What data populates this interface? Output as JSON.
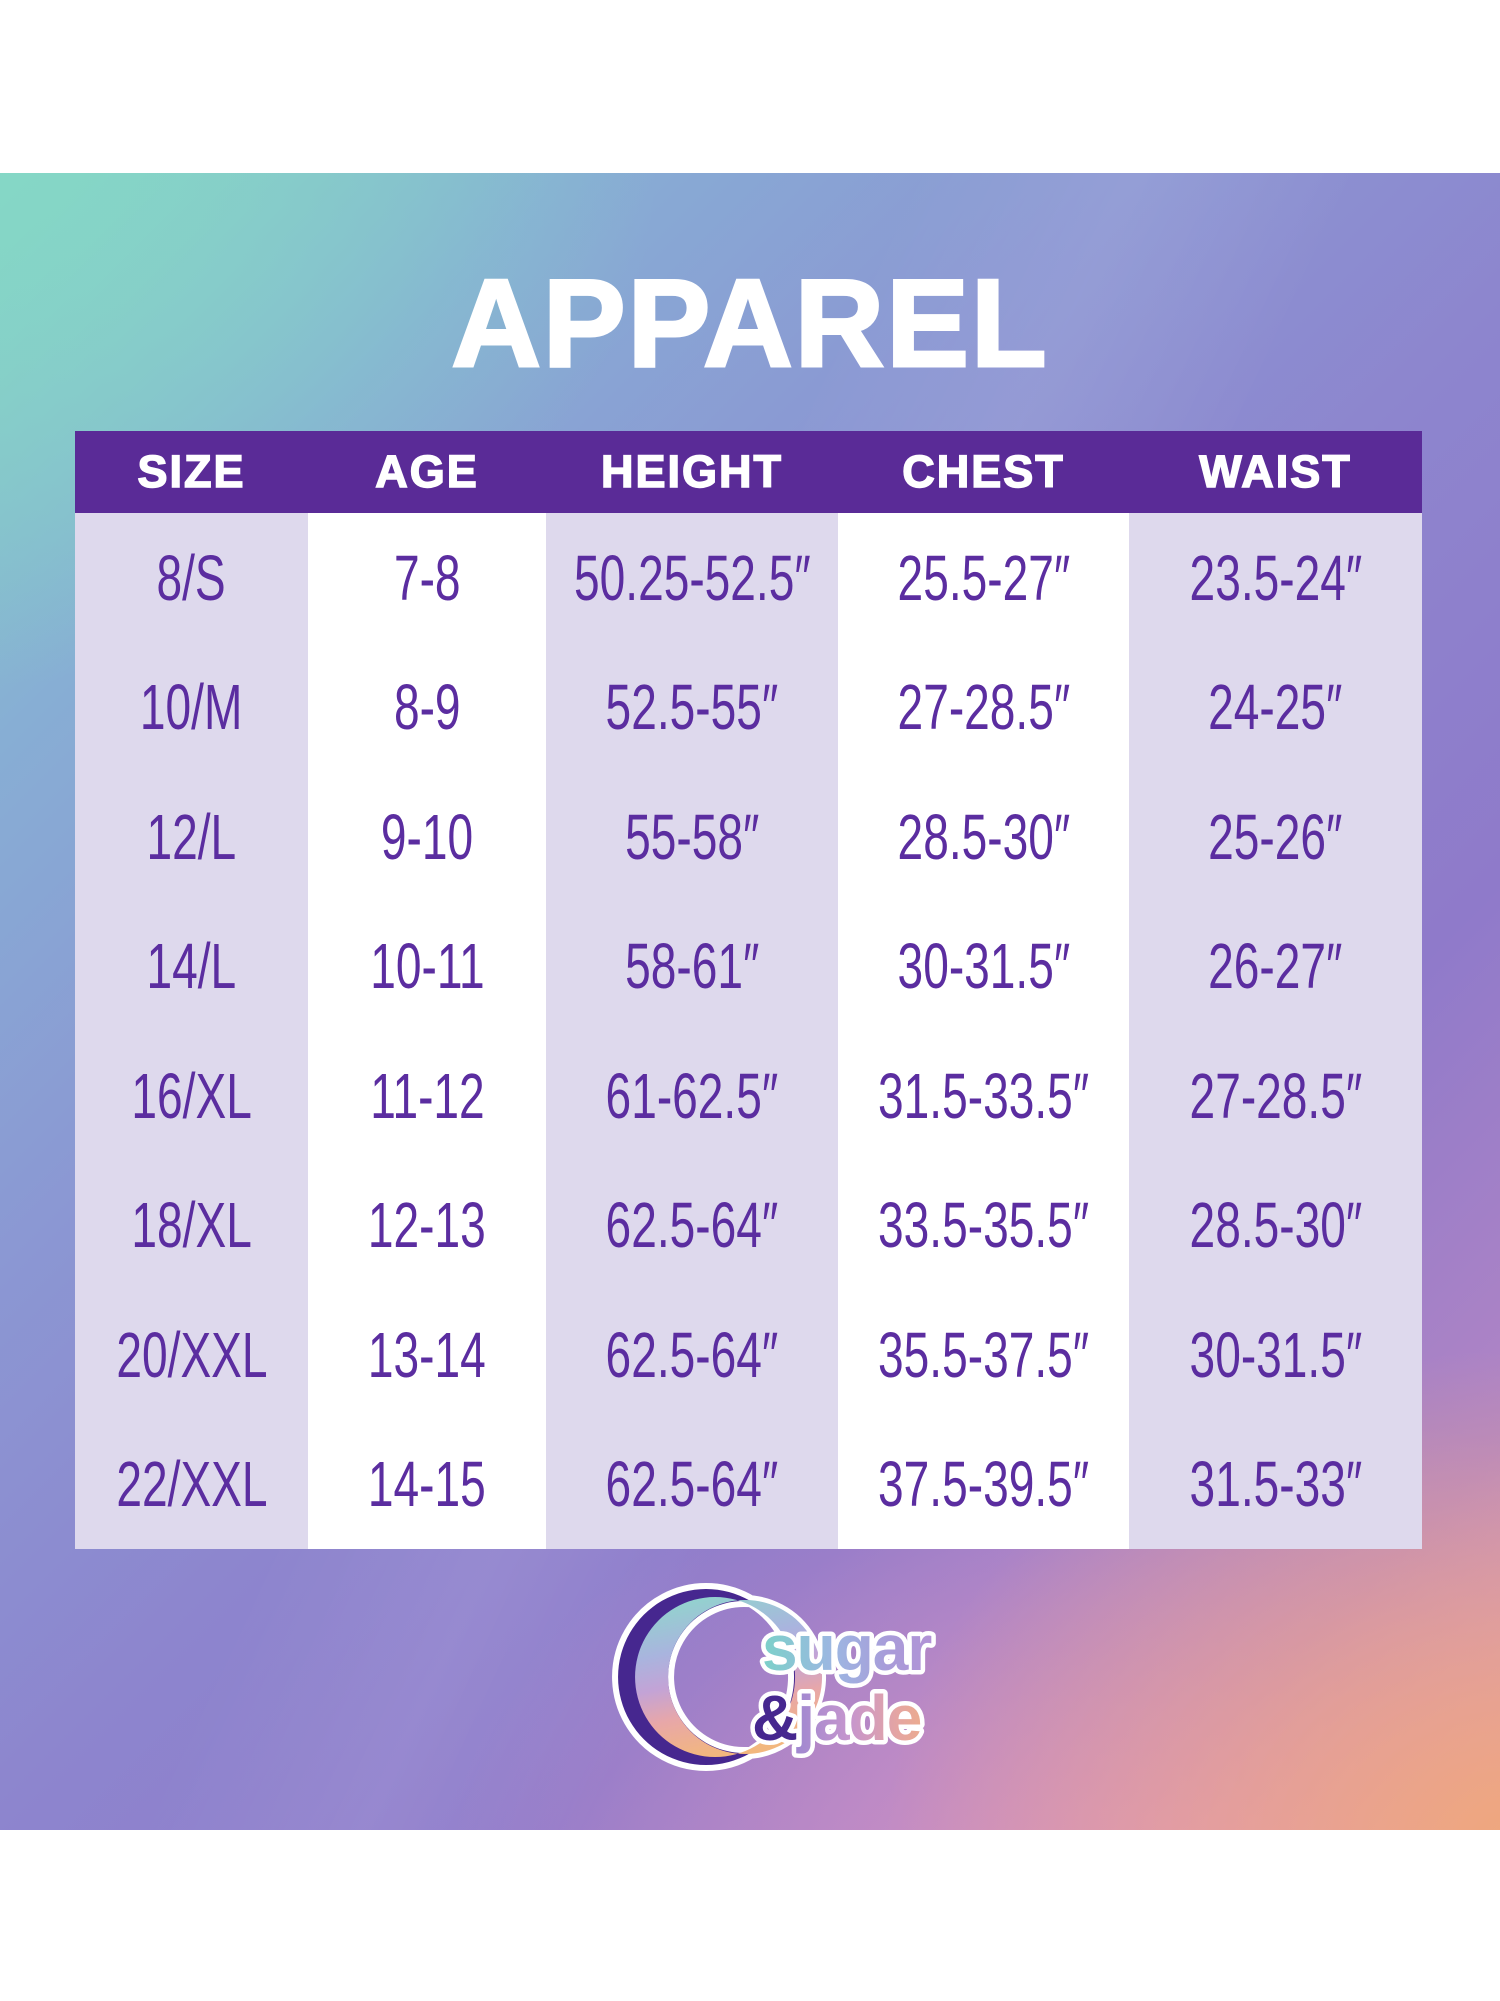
{
  "page": {
    "title": "APPAREL"
  },
  "colors": {
    "header_bar": "#5a2b97",
    "cell_text": "#5b2da0",
    "stripe_lavender": "#ded9ed",
    "stripe_white": "#ffffff",
    "title_text": "#ffffff",
    "logo_dark_purple": "#46278f",
    "holo_gradient": [
      "#86d3c6",
      "#87aed4",
      "#8b97d3",
      "#8d85ce",
      "#8f7aca",
      "#b285c5",
      "#df9dc2",
      "#eeab87"
    ]
  },
  "chart_data": {
    "type": "table",
    "title": "APPAREL",
    "columns": [
      "SIZE",
      "AGE",
      "HEIGHT",
      "CHEST",
      "WAIST"
    ],
    "rows": [
      [
        "8/S",
        "7-8",
        "50.25-52.5″",
        "25.5-27″",
        "23.5-24″"
      ],
      [
        "10/M",
        "8-9",
        "52.5-55″",
        "27-28.5″",
        "24-25″"
      ],
      [
        "12/L",
        "9-10",
        "55-58″",
        "28.5-30″",
        "25-26″"
      ],
      [
        "14/L",
        "10-11",
        "58-61″",
        "30-31.5″",
        "26-27″"
      ],
      [
        "16/XL",
        "11-12",
        "61-62.5″",
        "31.5-33.5″",
        "27-28.5″"
      ],
      [
        "18/XL",
        "12-13",
        "62.5-64″",
        "33.5-35.5″",
        "28.5-30″"
      ],
      [
        "20/XXL",
        "13-14",
        "62.5-64″",
        "35.5-37.5″",
        "30-31.5″"
      ],
      [
        "22/XXL",
        "14-15",
        "62.5-64″",
        "37.5-39.5″",
        "31.5-33″"
      ]
    ]
  },
  "logo": {
    "brand_word1": "sugar",
    "brand_amp": "&",
    "brand_word2": "jade",
    "icon": "crescent-moon"
  }
}
